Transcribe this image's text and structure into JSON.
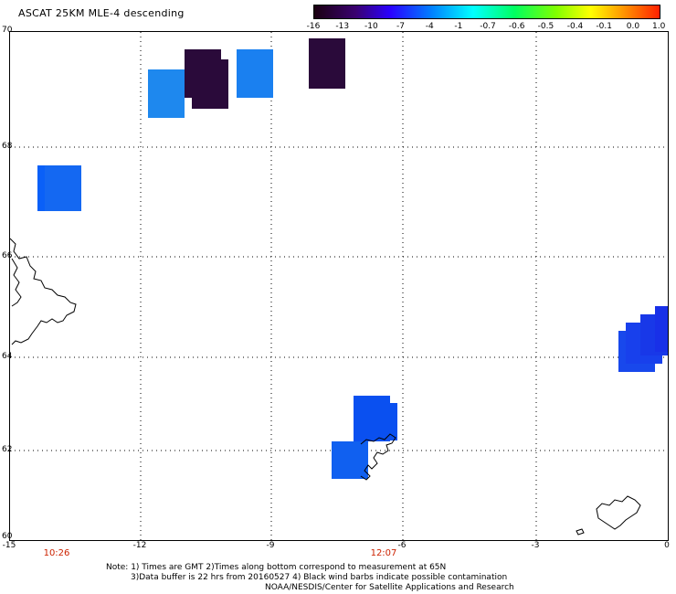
{
  "title": "ASCAT 25KM MLE-4 descending",
  "colorbar": {
    "labels": [
      "-16",
      "-13",
      "-10",
      "-7",
      "-4",
      "-1",
      "-0.7",
      "-0.6",
      "-0.5",
      "-0.4",
      "-0.1",
      "0.0",
      "1.0"
    ],
    "colors": [
      "#000000",
      "#330033",
      "#4b0082",
      "#1a00ff",
      "#0050ff",
      "#0090ff",
      "#00d8ff",
      "#00ff80",
      "#40ff00",
      "#c0ff00",
      "#ffd000",
      "#ff7000",
      "#ff2000"
    ]
  },
  "axes": {
    "lat_ticks": [
      "70",
      "68",
      "66",
      "64",
      "62",
      "60"
    ],
    "lon_ticks": [
      "-15",
      "-12",
      "-9",
      "-6",
      "-3",
      "0"
    ]
  },
  "times": [
    "10:26",
    "12:07"
  ],
  "notes": [
    "Note: 1) Times are GMT 2)Times along bottom correspond to measurement at 65N",
    "3)Data buffer is 22 hrs from 20160527 4) Black wind barbs indicate possible contamination",
    "NOAA/NESDIS/Center for Satellite Applications and Research"
  ],
  "map_data": {
    "lon_range": [
      -15,
      0
    ],
    "lat_range": [
      60,
      70
    ],
    "swaths": [
      {
        "color": "#1e88ee",
        "count": 1
      },
      {
        "color": "#2a0a3a",
        "count": 3
      },
      {
        "color": "#1a80f0",
        "count": 1
      },
      {
        "color": "#0a60f8",
        "count": 2
      },
      {
        "color": "#0a50f0",
        "count": 2
      },
      {
        "color": "#1060f0",
        "count": 1
      },
      {
        "color": "#1830e8",
        "count": 4
      }
    ]
  }
}
